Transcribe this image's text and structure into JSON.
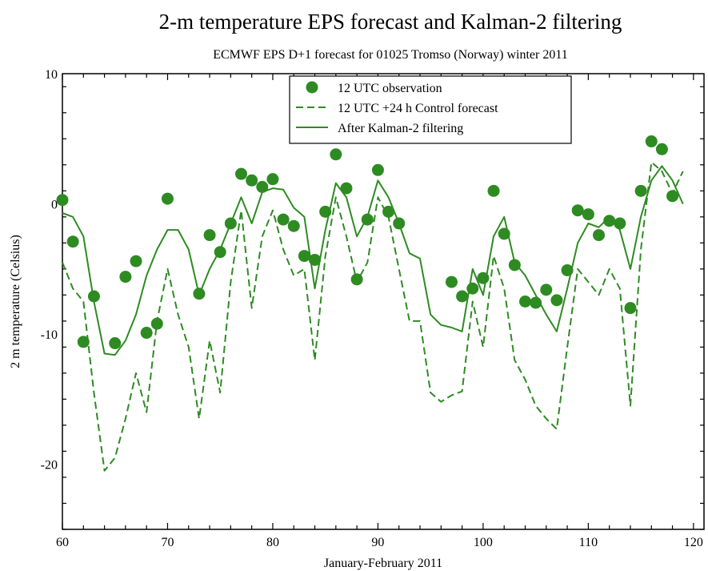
{
  "chart_data": {
    "type": "line",
    "title": "2-m temperature EPS forecast and Kalman-2 filtering",
    "subtitle": "ECMWF EPS D+1 forecast for 01025 Tromso (Norway) winter 2011",
    "xlabel": "January-February 2011",
    "ylabel": "2 m temperature (Celsius)",
    "xlim": [
      60,
      121
    ],
    "ylim": [
      -25,
      10
    ],
    "xticks": [
      60,
      70,
      80,
      90,
      100,
      110,
      120
    ],
    "yticks": [
      -20,
      -10,
      0,
      10
    ],
    "grid": false,
    "legend_position": "top-center",
    "color": "#2e8b22",
    "series": [
      {
        "name": "12 UTC observation",
        "style": "markers",
        "points": [
          [
            60,
            0.3
          ],
          [
            61,
            -2.9
          ],
          [
            62,
            -10.6
          ],
          [
            63,
            -7.1
          ],
          [
            65,
            -10.7
          ],
          [
            66,
            -5.6
          ],
          [
            67,
            -4.4
          ],
          [
            68,
            -9.9
          ],
          [
            69,
            -9.2
          ],
          [
            70,
            0.4
          ],
          [
            73,
            -6.9
          ],
          [
            74,
            -2.4
          ],
          [
            75,
            -3.7
          ],
          [
            76,
            -1.5
          ],
          [
            77,
            2.3
          ],
          [
            78,
            1.8
          ],
          [
            79,
            1.3
          ],
          [
            80,
            1.9
          ],
          [
            81,
            -1.2
          ],
          [
            82,
            -1.7
          ],
          [
            83,
            -4.0
          ],
          [
            84,
            -4.3
          ],
          [
            85,
            -0.6
          ],
          [
            86,
            3.8
          ],
          [
            87,
            1.2
          ],
          [
            88,
            -5.8
          ],
          [
            89,
            -1.2
          ],
          [
            90,
            2.6
          ],
          [
            91,
            -0.6
          ],
          [
            92,
            -1.5
          ],
          [
            97,
            -6.0
          ],
          [
            98,
            -7.1
          ],
          [
            99,
            -6.5
          ],
          [
            100,
            -5.7
          ],
          [
            101,
            1.0
          ],
          [
            102,
            -2.3
          ],
          [
            103,
            -4.7
          ],
          [
            104,
            -7.5
          ],
          [
            105,
            -7.6
          ],
          [
            106,
            -6.6
          ],
          [
            107,
            -7.4
          ],
          [
            108,
            -5.1
          ],
          [
            109,
            -0.5
          ],
          [
            110,
            -0.8
          ],
          [
            111,
            -2.4
          ],
          [
            112,
            -1.3
          ],
          [
            113,
            -1.5
          ],
          [
            114,
            -8.0
          ],
          [
            115,
            1.0
          ],
          [
            116,
            4.8
          ],
          [
            117,
            4.2
          ],
          [
            118,
            0.6
          ]
        ]
      },
      {
        "name": "12 UTC +24 h Control forecast",
        "style": "dashed",
        "points": [
          [
            60,
            -4.5
          ],
          [
            61,
            -6.5
          ],
          [
            62,
            -7.5
          ],
          [
            63,
            -14.5
          ],
          [
            64,
            -20.5
          ],
          [
            65,
            -19.5
          ],
          [
            66,
            -16.5
          ],
          [
            67,
            -13.0
          ],
          [
            68,
            -16.0
          ],
          [
            69,
            -9.0
          ],
          [
            70,
            -5.0
          ],
          [
            71,
            -8.5
          ],
          [
            72,
            -11.0
          ],
          [
            73,
            -16.5
          ],
          [
            74,
            -10.5
          ],
          [
            75,
            -14.5
          ],
          [
            76,
            -6.0
          ],
          [
            77,
            -0.5
          ],
          [
            78,
            -8.0
          ],
          [
            79,
            -2.5
          ],
          [
            80,
            -0.5
          ],
          [
            81,
            -3.5
          ],
          [
            82,
            -5.5
          ],
          [
            83,
            -5.0
          ],
          [
            84,
            -12.0
          ],
          [
            85,
            -4.0
          ],
          [
            86,
            0.5
          ],
          [
            87,
            -2.5
          ],
          [
            88,
            -6.0
          ],
          [
            89,
            -4.5
          ],
          [
            90,
            0.5
          ],
          [
            91,
            -1.0
          ],
          [
            92,
            -5.0
          ],
          [
            93,
            -9.0
          ],
          [
            94,
            -9.0
          ],
          [
            95,
            -14.5
          ],
          [
            96,
            -15.2
          ],
          [
            97,
            -14.7
          ],
          [
            98,
            -14.4
          ],
          [
            99,
            -7.5
          ],
          [
            100,
            -11.0
          ],
          [
            101,
            -4.0
          ],
          [
            102,
            -6.5
          ],
          [
            103,
            -12.0
          ],
          [
            104,
            -13.5
          ],
          [
            105,
            -15.5
          ],
          [
            106,
            -16.5
          ],
          [
            107,
            -17.3
          ],
          [
            108,
            -11.0
          ],
          [
            109,
            -5.0
          ],
          [
            110,
            -6.0
          ],
          [
            111,
            -7.0
          ],
          [
            112,
            -5.0
          ],
          [
            113,
            -6.5
          ],
          [
            114,
            -15.5
          ],
          [
            115,
            -3.5
          ],
          [
            116,
            3.2
          ],
          [
            117,
            2.5
          ],
          [
            118,
            0.8
          ],
          [
            119,
            2.5
          ]
        ]
      },
      {
        "name": "After Kalman-2 filtering",
        "style": "solid",
        "points": [
          [
            60,
            -0.7
          ],
          [
            61,
            -1.0
          ],
          [
            62,
            -2.5
          ],
          [
            63,
            -7.5
          ],
          [
            64,
            -11.5
          ],
          [
            65,
            -11.6
          ],
          [
            66,
            -10.5
          ],
          [
            67,
            -8.5
          ],
          [
            68,
            -5.5
          ],
          [
            69,
            -3.5
          ],
          [
            70,
            -2.0
          ],
          [
            71,
            -2.0
          ],
          [
            72,
            -3.5
          ],
          [
            73,
            -7.0
          ],
          [
            74,
            -5.0
          ],
          [
            75,
            -3.5
          ],
          [
            76,
            -1.5
          ],
          [
            77,
            0.5
          ],
          [
            78,
            -1.5
          ],
          [
            79,
            0.9
          ],
          [
            80,
            1.2
          ],
          [
            81,
            1.1
          ],
          [
            82,
            -0.3
          ],
          [
            83,
            -1.0
          ],
          [
            84,
            -6.5
          ],
          [
            85,
            -2.0
          ],
          [
            86,
            1.6
          ],
          [
            87,
            0.5
          ],
          [
            88,
            -2.5
          ],
          [
            89,
            -1.0
          ],
          [
            90,
            1.8
          ],
          [
            91,
            0.5
          ],
          [
            92,
            -1.5
          ],
          [
            93,
            -3.8
          ],
          [
            94,
            -4.2
          ],
          [
            95,
            -8.5
          ],
          [
            96,
            -9.3
          ],
          [
            97,
            -9.5
          ],
          [
            98,
            -9.8
          ],
          [
            99,
            -5.0
          ],
          [
            100,
            -7.0
          ],
          [
            101,
            -2.5
          ],
          [
            102,
            -1.0
          ],
          [
            103,
            -4.5
          ],
          [
            104,
            -5.5
          ],
          [
            105,
            -7.0
          ],
          [
            106,
            -8.5
          ],
          [
            107,
            -9.8
          ],
          [
            108,
            -6.5
          ],
          [
            109,
            -3.0
          ],
          [
            110,
            -1.5
          ],
          [
            111,
            -1.8
          ],
          [
            112,
            -1.0
          ],
          [
            113,
            -2.0
          ],
          [
            114,
            -5.0
          ],
          [
            115,
            -1.0
          ],
          [
            116,
            1.8
          ],
          [
            117,
            2.9
          ],
          [
            118,
            1.8
          ],
          [
            119,
            0.0
          ]
        ]
      }
    ]
  }
}
